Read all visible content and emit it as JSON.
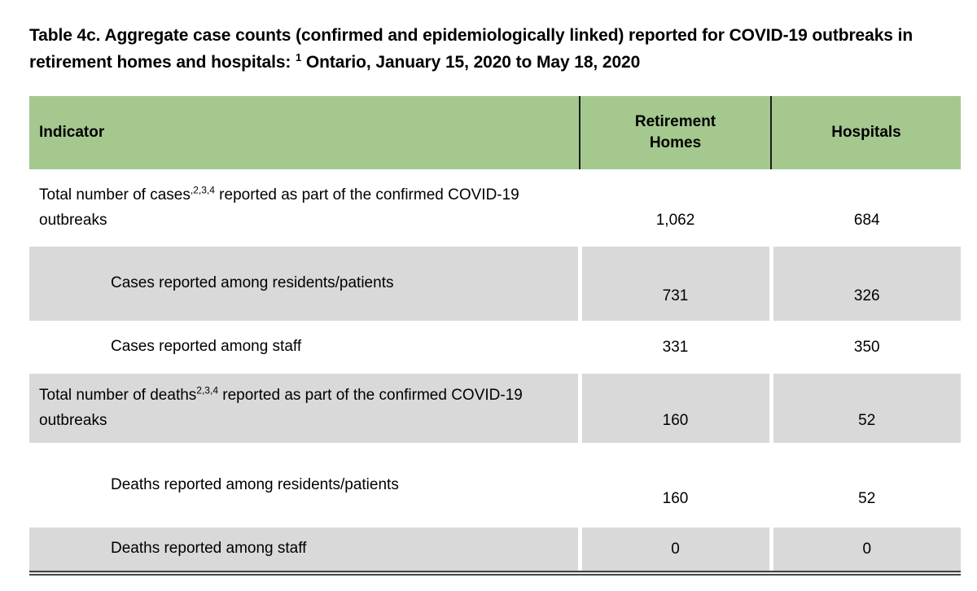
{
  "title": {
    "pre": "Table 4c. Aggregate case counts (confirmed and epidemiologically linked) reported for COVID-19 outbreaks in retirement homes and hospitals: ",
    "sup": "1",
    "post": " Ontario, January 15, 2020 to May 18, 2020"
  },
  "colors": {
    "header_bg": "#a5c88f",
    "alt_row_bg": "#d9d9d9",
    "text": "#000000",
    "header_divider": "#1c1c1c",
    "bottom_border": "#464646"
  },
  "table": {
    "columns": [
      "Indicator",
      "Retirement Homes",
      "Hospitals"
    ],
    "rows": [
      {
        "label_pre": "Total number of cases",
        "label_sup": ",2,3,4",
        "label_post": " reported as part of the confirmed COVID-19 outbreaks",
        "indent": false,
        "values": [
          "1,062",
          "684"
        ]
      },
      {
        "label_pre": "Cases reported among residents/patients",
        "label_sup": "",
        "label_post": "",
        "indent": true,
        "values": [
          "731",
          "326"
        ]
      },
      {
        "label_pre": "Cases reported among staff",
        "label_sup": "",
        "label_post": "",
        "indent": true,
        "values": [
          "331",
          "350"
        ]
      },
      {
        "label_pre": "Total number of deaths",
        "label_sup": "2,3,4",
        "label_post": " reported as part of the confirmed COVID-19 outbreaks",
        "indent": false,
        "values": [
          "160",
          "52"
        ]
      },
      {
        "label_pre": "Deaths reported among residents/patients",
        "label_sup": "",
        "label_post": "",
        "indent": true,
        "values": [
          "160",
          "52"
        ]
      },
      {
        "label_pre": "Deaths reported among staff",
        "label_sup": "",
        "label_post": "",
        "indent": true,
        "values": [
          "0",
          "0"
        ]
      }
    ]
  },
  "chart_data": {
    "type": "table",
    "title": "Table 4c. Aggregate case counts (confirmed and epidemiologically linked) reported for COVID-19 outbreaks in retirement homes and hospitals: Ontario, January 15, 2020 to May 18, 2020",
    "columns": [
      "Indicator",
      "Retirement Homes",
      "Hospitals"
    ],
    "rows": [
      [
        "Total number of cases reported as part of the confirmed COVID-19 outbreaks",
        1062,
        684
      ],
      [
        "Cases reported among residents/patients",
        731,
        326
      ],
      [
        "Cases reported among staff",
        331,
        350
      ],
      [
        "Total number of deaths reported as part of the confirmed COVID-19 outbreaks",
        160,
        52
      ],
      [
        "Deaths reported among residents/patients",
        160,
        52
      ],
      [
        "Deaths reported among staff",
        0,
        0
      ]
    ]
  }
}
